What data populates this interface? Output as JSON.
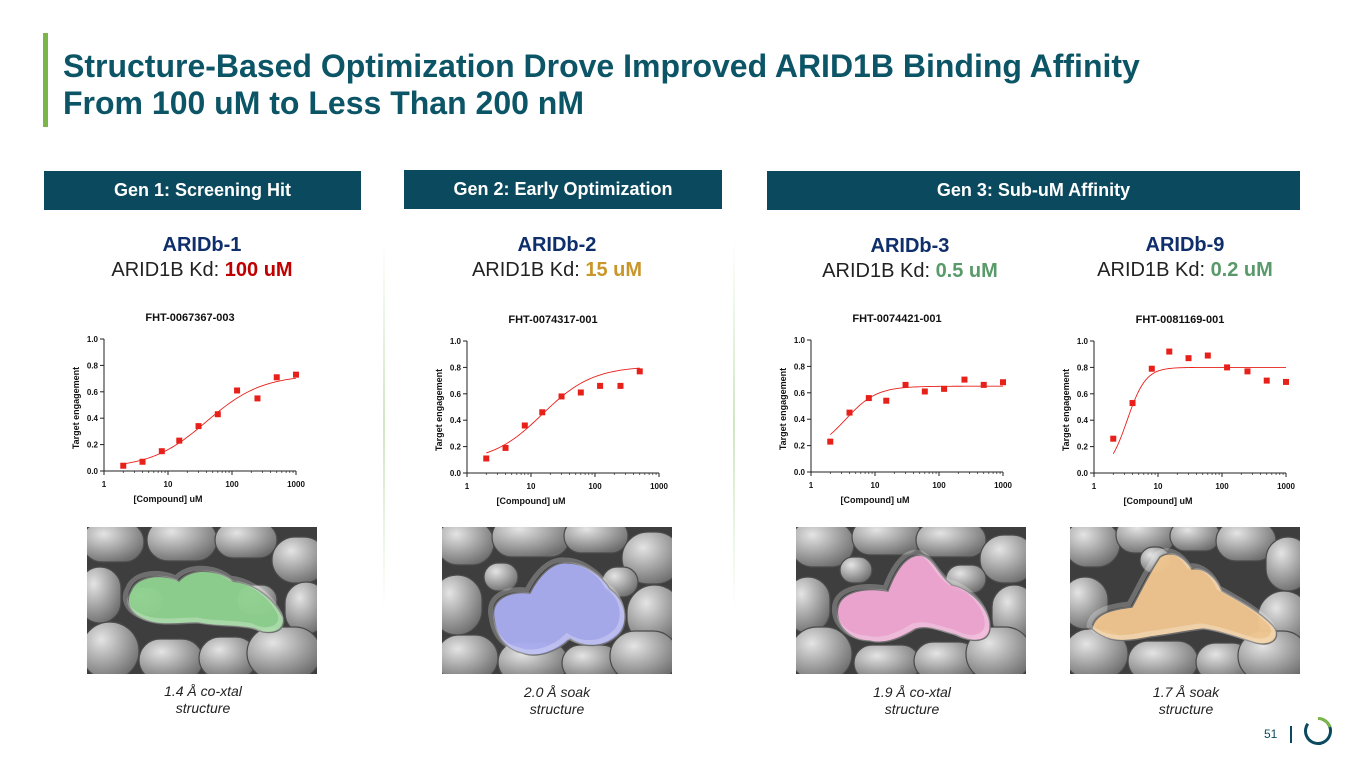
{
  "slide": {
    "title_line1": "Structure-Based Optimization Drove Improved ARID1B Binding Affinity",
    "title_line2": "From 100 uM to Less Than 200 nM",
    "page_number": "51"
  },
  "headers": {
    "gen1": "Gen 1: Screening Hit",
    "gen2": "Gen 2: Early Optimization",
    "gen3": "Gen 3: Sub-uM Affinity"
  },
  "compounds": [
    {
      "name": "ARIDb-1",
      "kd_label": "ARID1B Kd:",
      "kd_value": "100 uM",
      "kd_color": "#c00000",
      "structure_color": "#8fd18f",
      "caption_line1": "1.4 Å co-xtal",
      "caption_line2": "structure"
    },
    {
      "name": "ARIDb-2",
      "kd_label": "ARID1B Kd:",
      "kd_value": "15 uM",
      "kd_color": "#c9962a",
      "structure_color": "#a9acef",
      "caption_line1": "2.0 Å soak",
      "caption_line2": "structure"
    },
    {
      "name": "ARIDb-3",
      "kd_label": "ARID1B Kd:",
      "kd_value": "0.5 uM",
      "kd_color": "#5a9a6a",
      "structure_color": "#f0a8d2",
      "caption_line1": "1.9 Å co-xtal",
      "caption_line2": "structure"
    },
    {
      "name": "ARIDb-9",
      "kd_label": "ARID1B Kd:",
      "kd_value": "0.2 uM",
      "kd_color": "#5a9a6a",
      "structure_color": "#f0c690",
      "caption_line1": "1.7 Å soak",
      "caption_line2": "structure"
    }
  ],
  "chart_data": [
    {
      "type": "scatter",
      "title": "FHT-0067367-003",
      "xlabel": "[Compound] uM",
      "ylabel": "Target engagement",
      "xscale": "log",
      "xlim": [
        1,
        1000
      ],
      "ylim": [
        0,
        1.0
      ],
      "xticks": [
        "1",
        "10",
        "100",
        "1000"
      ],
      "yticks": [
        "0.0",
        "0.2",
        "0.4",
        "0.6",
        "0.8",
        "1.0"
      ],
      "x": [
        2,
        4,
        8,
        15,
        30,
        60,
        120,
        250,
        500,
        1000
      ],
      "y": [
        0.04,
        0.07,
        0.15,
        0.23,
        0.34,
        0.43,
        0.61,
        0.55,
        0.71,
        0.73
      ],
      "fit": {
        "bottom": 0.02,
        "top": 0.73,
        "ec50": 40,
        "hill": 1.0
      },
      "marker_color": "#e8201a"
    },
    {
      "type": "scatter",
      "title": "FHT-0074317-001",
      "xlabel": "[Compound] uM",
      "ylabel": "Target engagement",
      "xscale": "log",
      "xlim": [
        1,
        1000
      ],
      "ylim": [
        0,
        1.0
      ],
      "xticks": [
        "1",
        "10",
        "100",
        "1000"
      ],
      "yticks": [
        "0.0",
        "0.2",
        "0.4",
        "0.6",
        "0.8",
        "1.0"
      ],
      "x": [
        2,
        4,
        8,
        15,
        30,
        60,
        120,
        250,
        500
      ],
      "y": [
        0.11,
        0.19,
        0.36,
        0.46,
        0.58,
        0.61,
        0.66,
        0.66,
        0.77
      ],
      "fit": {
        "bottom": 0.08,
        "top": 0.81,
        "ec50": 15,
        "hill": 1.1
      },
      "marker_color": "#e8201a"
    },
    {
      "type": "scatter",
      "title": "FHT-0074421-001",
      "xlabel": "[Compound] uM",
      "ylabel": "Target engagement",
      "xscale": "log",
      "xlim": [
        1,
        1000
      ],
      "ylim": [
        0,
        1.0
      ],
      "xticks": [
        "1",
        "10",
        "100",
        "1000"
      ],
      "yticks": [
        "0.0",
        "0.2",
        "0.4",
        "0.6",
        "0.8",
        "1.0"
      ],
      "x": [
        2,
        4,
        8,
        15,
        30,
        60,
        120,
        250,
        500,
        1000
      ],
      "y": [
        0.23,
        0.45,
        0.56,
        0.54,
        0.66,
        0.61,
        0.63,
        0.7,
        0.66,
        0.68
      ],
      "fit": {
        "bottom": 0.15,
        "top": 0.65,
        "ec50": 3.5,
        "hill": 1.8
      },
      "marker_color": "#e8201a"
    },
    {
      "type": "scatter",
      "title": "FHT-0081169-001",
      "xlabel": "[Compound] uM",
      "ylabel": "Target engagement",
      "xscale": "log",
      "xlim": [
        1,
        1000
      ],
      "ylim": [
        0,
        1.0
      ],
      "xticks": [
        "1",
        "10",
        "100",
        "1000"
      ],
      "yticks": [
        "0.0",
        "0.2",
        "0.4",
        "0.6",
        "0.8",
        "1.0"
      ],
      "x": [
        2,
        4,
        8,
        15,
        30,
        60,
        120,
        250,
        500,
        1000
      ],
      "y": [
        0.26,
        0.53,
        0.79,
        0.92,
        0.87,
        0.89,
        0.8,
        0.77,
        0.7,
        0.69
      ],
      "fit": {
        "bottom": 0.0,
        "top": 0.8,
        "ec50": 3.3,
        "hill": 3.0
      },
      "marker_color": "#e8201a"
    }
  ]
}
